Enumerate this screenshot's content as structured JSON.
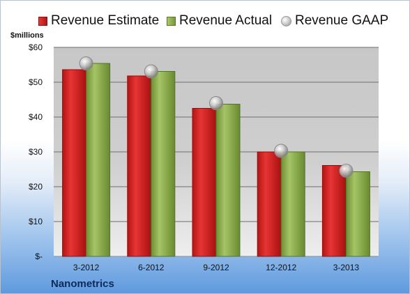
{
  "legend": {
    "estimate": "Revenue Estimate",
    "actual": "Revenue Actual",
    "gaap": "Revenue GAAP"
  },
  "unit_label": "$millions",
  "company": "Nanometrics",
  "y_ticks": [
    "$-",
    "$10",
    "$20",
    "$30",
    "$40",
    "$50",
    "$60"
  ],
  "chart_data": {
    "type": "bar",
    "categories": [
      "3-2012",
      "6-2012",
      "9-2012",
      "12-2012",
      "3-2013"
    ],
    "series": [
      {
        "name": "Revenue Estimate",
        "values": [
          53.6,
          51.8,
          42.5,
          30.0,
          26.1
        ],
        "color": "#c41a1a"
      },
      {
        "name": "Revenue Actual",
        "values": [
          55.4,
          53.1,
          43.7,
          30.0,
          24.3
        ],
        "color": "#8aab4a"
      },
      {
        "name": "Revenue GAAP",
        "values": [
          55.4,
          53.1,
          44.0,
          30.3,
          24.6
        ],
        "color": "#bdbdbd",
        "marker": "circle"
      }
    ],
    "ylabel": "$millions",
    "ylim": [
      0,
      60
    ],
    "yticks": [
      0,
      10,
      20,
      30,
      40,
      50,
      60
    ],
    "grid": true,
    "legend_position": "top"
  }
}
